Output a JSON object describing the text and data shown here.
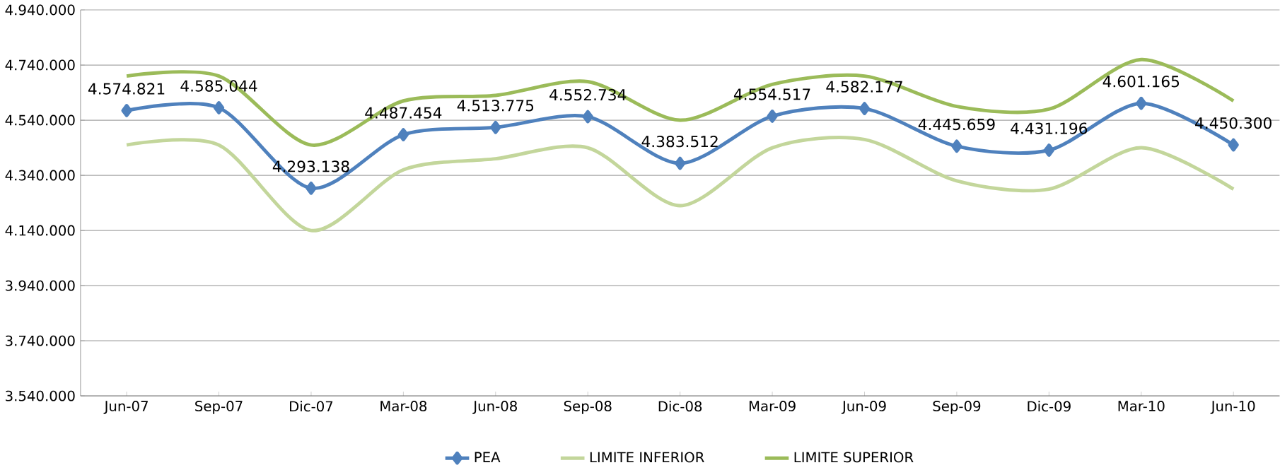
{
  "chart_data": {
    "type": "line",
    "categories": [
      "Jun-07",
      "Sep-07",
      "Dic-07",
      "Mar-08",
      "Jun-08",
      "Sep-08",
      "Dic-08",
      "Mar-09",
      "Jun-09",
      "Sep-09",
      "Dic-09",
      "Mar-10",
      "Jun-10"
    ],
    "series": [
      {
        "name": "PEA",
        "color": "#4f81bd",
        "marker": "diamond",
        "values": [
          4574821,
          4585044,
          4293138,
          4487454,
          4513775,
          4552734,
          4383512,
          4554517,
          4582177,
          4445659,
          4431196,
          4601165,
          4450300
        ],
        "value_labels": [
          "4.574.821",
          "4.585.044",
          "4.293.138",
          "4.487.454",
          "4.513.775",
          "4.552.734",
          "4.383.512",
          "4.554.517",
          "4.582.177",
          "4.445.659",
          "4.431.196",
          "4.601.165",
          "4.450.300"
        ]
      },
      {
        "name": "LIMITE INFERIOR",
        "color": "#c3d69b",
        "marker": "none",
        "values": [
          4450000,
          4450000,
          4140000,
          4360000,
          4400000,
          4440000,
          4230000,
          4440000,
          4470000,
          4320000,
          4290000,
          4440000,
          4290000
        ]
      },
      {
        "name": "LIMITE SUPERIOR",
        "color": "#9bbb59",
        "marker": "none",
        "values": [
          4700000,
          4700000,
          4450000,
          4610000,
          4630000,
          4680000,
          4540000,
          4670000,
          4700000,
          4590000,
          4580000,
          4760000,
          4610000
        ]
      }
    ],
    "ylim": [
      3540000,
      4940000
    ],
    "yticks": [
      {
        "value": 3540000,
        "label": "3.540.000"
      },
      {
        "value": 3740000,
        "label": "3.740.000"
      },
      {
        "value": 3940000,
        "label": "3.940.000"
      },
      {
        "value": 4140000,
        "label": "4.140.000"
      },
      {
        "value": 4340000,
        "label": "4.340.000"
      },
      {
        "value": 4540000,
        "label": "4.540.000"
      },
      {
        "value": 4740000,
        "label": "4.740.000"
      },
      {
        "value": 4940000,
        "label": "4.940.000"
      }
    ],
    "grid": "y",
    "legend": "bottom",
    "line_style": "solid"
  }
}
